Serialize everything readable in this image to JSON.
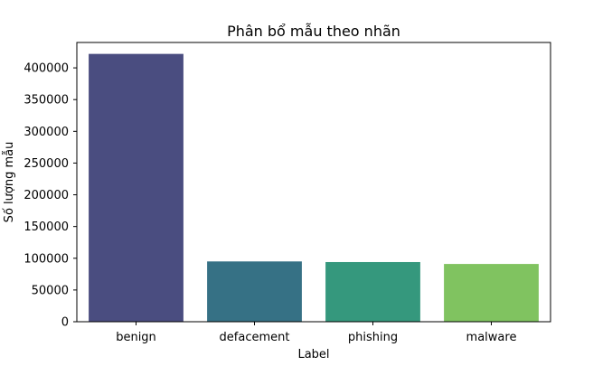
{
  "chart_data": {
    "type": "bar",
    "title": "Phân bổ mẫu theo nhãn",
    "xlabel": "Label",
    "ylabel": "Số lượng mẫu",
    "categories": [
      "benign",
      "defacement",
      "phishing",
      "malware"
    ],
    "values": [
      422000,
      95000,
      94000,
      91000
    ],
    "colors": [
      "#4a4d80",
      "#367185",
      "#35987d",
      "#80c360"
    ],
    "ylim": [
      0,
      440000
    ],
    "yticks": [
      0,
      50000,
      100000,
      150000,
      200000,
      250000,
      300000,
      350000,
      400000
    ],
    "ytick_labels": [
      "0",
      "50000",
      "100000",
      "150000",
      "200000",
      "250000",
      "300000",
      "350000",
      "400000"
    ],
    "grid": false,
    "legend": "none"
  }
}
